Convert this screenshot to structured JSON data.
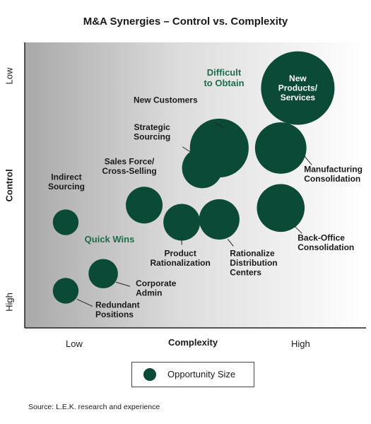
{
  "title": "M&A Synergies – Control vs. Complexity",
  "source": "Source: L.E.K. research and experience",
  "legend": {
    "label": "Opportunity Size"
  },
  "colors": {
    "bubble": "#0b4a36",
    "zone_label": "#1f6b4a",
    "bubble_text": "#ffffff"
  },
  "chart_data": {
    "type": "scatter",
    "title": "M&A Synergies – Control vs. Complexity",
    "xlabel": "Complexity",
    "ylabel": "Control",
    "x_ticks": [
      "Low",
      "High"
    ],
    "y_ticks": [
      "Low",
      "High"
    ],
    "x_range": [
      0,
      100
    ],
    "y_range": [
      0,
      100
    ],
    "y_direction": "High at bottom, Low at top",
    "grid": false,
    "legend_position": "bottom-center",
    "zones": [
      {
        "label": "Difficult to Obtain",
        "lines": [
          "Difficult",
          "to Obtain"
        ]
      },
      {
        "label": "Quick Wins",
        "lines": [
          "Quick Wins"
        ]
      }
    ],
    "points": [
      {
        "name": "New Products/ Services",
        "lines": [
          "New",
          "Products/",
          "Services"
        ],
        "x": 80,
        "y": 84,
        "size": 10,
        "label_inside": true
      },
      {
        "name": "New Customers",
        "lines": [
          "New Customers"
        ],
        "x": 57,
        "y": 63,
        "size": 8
      },
      {
        "name": "Strategic Sourcing",
        "lines": [
          "Strategic",
          "Sourcing"
        ],
        "x": 52,
        "y": 56,
        "size": 5.5
      },
      {
        "name": "Manufacturing Consolidation",
        "lines": [
          "Manufacturing",
          "Consolidation"
        ],
        "x": 75,
        "y": 63,
        "size": 7
      },
      {
        "name": "Sales Force/ Cross-Selling",
        "lines": [
          "Sales Force/",
          "Cross-Selling"
        ],
        "x": 35,
        "y": 43,
        "size": 5
      },
      {
        "name": "Indirect Sourcing",
        "lines": [
          "Indirect",
          "Sourcing"
        ],
        "x": 12,
        "y": 37,
        "size": 3.5
      },
      {
        "name": "Product Rationalization",
        "lines": [
          "Product",
          "Rationalization"
        ],
        "x": 46,
        "y": 37,
        "size": 5
      },
      {
        "name": "Rationalize Distribution Centers",
        "lines": [
          "Rationalize",
          "Distribution",
          "Centers"
        ],
        "x": 57,
        "y": 38,
        "size": 5.5
      },
      {
        "name": "Back-Office Consolidation",
        "lines": [
          "Back-Office",
          "Consolidation"
        ],
        "x": 75,
        "y": 42,
        "size": 6.5
      },
      {
        "name": "Corporate Admin",
        "lines": [
          "Corporate",
          "Admin"
        ],
        "x": 23,
        "y": 19,
        "size": 4
      },
      {
        "name": "Redundant Positions",
        "lines": [
          "Redundant",
          "Positions"
        ],
        "x": 12,
        "y": 13,
        "size": 3.5
      }
    ]
  }
}
